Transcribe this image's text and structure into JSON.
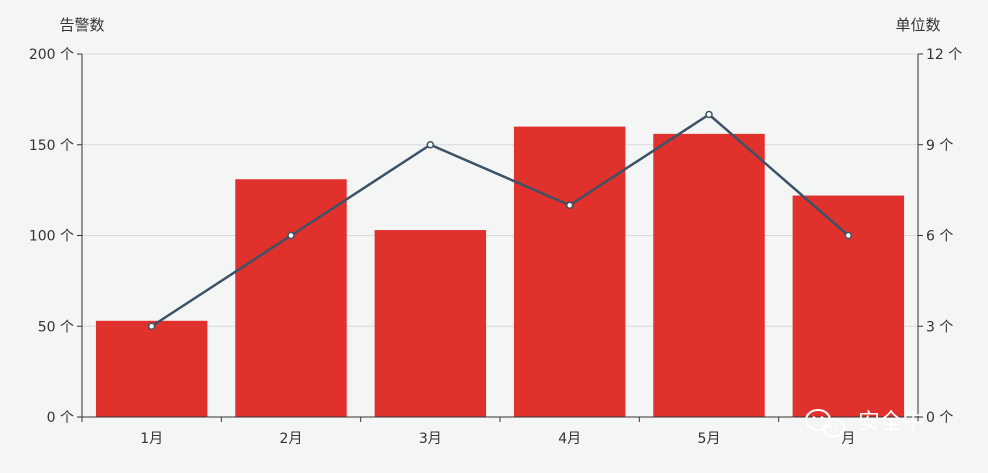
{
  "colors": {
    "bar": "#e0312d",
    "line": "#3d5266",
    "background": "#f4f5f5",
    "grid": "#d9d9d9",
    "axis": "#333333"
  },
  "chart_data": {
    "type": "bar",
    "categories": [
      "1月",
      "2月",
      "3月",
      "4月",
      "5月",
      "月"
    ],
    "series": [
      {
        "type": "bar",
        "axis": "left",
        "values": [
          53,
          131,
          103,
          160,
          156,
          122
        ]
      },
      {
        "type": "line",
        "axis": "right",
        "values": [
          3,
          6,
          9,
          7,
          10,
          6
        ]
      }
    ],
    "left_axis": {
      "title": "告警数",
      "ylim": [
        0,
        200
      ],
      "ticks": [
        0,
        50,
        100,
        150,
        200
      ],
      "tick_labels": [
        "0 个",
        "50 个",
        "100 个",
        "150 个",
        "200 个"
      ]
    },
    "right_axis": {
      "title": "单位数",
      "ylim": [
        0,
        12
      ],
      "ticks": [
        0,
        3,
        6,
        9,
        12
      ],
      "tick_labels": [
        "0 个",
        "3 个",
        "6 个",
        "9 个",
        "12 个"
      ]
    },
    "grid": true
  },
  "watermark": {
    "text": "安全牛",
    "icon": "wechat-icon"
  }
}
